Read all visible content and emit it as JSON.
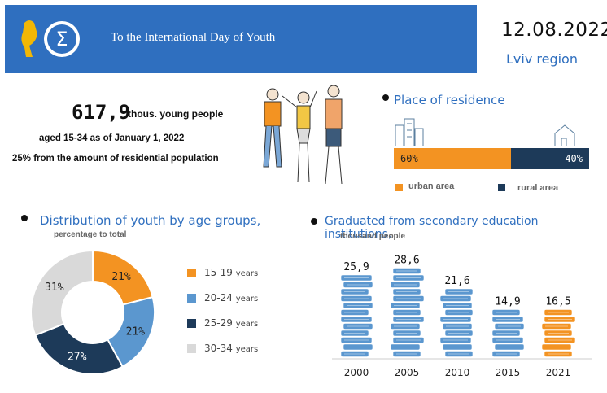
{
  "header": {
    "title": "To the International Day of Youth",
    "date": "12.08.2022",
    "region": "Lviv region",
    "colors": {
      "header_bg": "#2f6fbf",
      "logo": "#f2b705"
    }
  },
  "summary": {
    "value": "617,9",
    "unit": "thous. young people",
    "line2": "aged 15-34 as of January 1, 2022",
    "line3": "25% from the amount of residential population"
  },
  "residence": {
    "title": "Place of residence",
    "icons": [
      "city-buildings-icon",
      "house-icon"
    ],
    "urban_label": "60%",
    "rural_label": "40%",
    "legend_urban": "urban area",
    "legend_rural": "rural area",
    "colors": {
      "urban": "#f39322",
      "rural": "#1d3a59"
    }
  },
  "age": {
    "title": "Distribution of youth by age groups,",
    "subtitle": "percentage to total",
    "legend": [
      {
        "range": "15-19",
        "unit": "years",
        "color": "#f39322"
      },
      {
        "range": "20-24",
        "unit": "years",
        "color": "#5b97cf"
      },
      {
        "range": "25-29",
        "unit": "years",
        "color": "#1d3a59"
      },
      {
        "range": "30-34",
        "unit": "years",
        "color": "#d9d9d9"
      }
    ]
  },
  "graduates": {
    "title": "Graduated from secondary education institutions,",
    "subtitle": "thousand people"
  },
  "chart_data": [
    {
      "type": "bar",
      "categories": [
        "urban area",
        "rural area"
      ],
      "values": [
        60,
        40
      ],
      "labels": [
        "60%",
        "40%"
      ]
    },
    {
      "type": "pie",
      "categories": [
        "15-19 years",
        "20-24 years",
        "25-29 years",
        "30-34 years"
      ],
      "values": [
        21,
        21,
        27,
        31
      ],
      "labels": [
        "21%",
        "21%",
        "27%",
        "31%"
      ],
      "colors": [
        "#f39322",
        "#5b97cf",
        "#1d3a59",
        "#d9d9d9"
      ]
    },
    {
      "type": "bar",
      "categories": [
        "2000",
        "2005",
        "2010",
        "2015",
        "2021"
      ],
      "values": [
        25.9,
        28.6,
        21.6,
        14.9,
        16.5
      ],
      "labels": [
        "25,9",
        "28,6",
        "21,6",
        "14,9",
        "16,5"
      ],
      "colors": {
        "default": "#5b97cf",
        "highlight": "#f39322"
      }
    }
  ]
}
